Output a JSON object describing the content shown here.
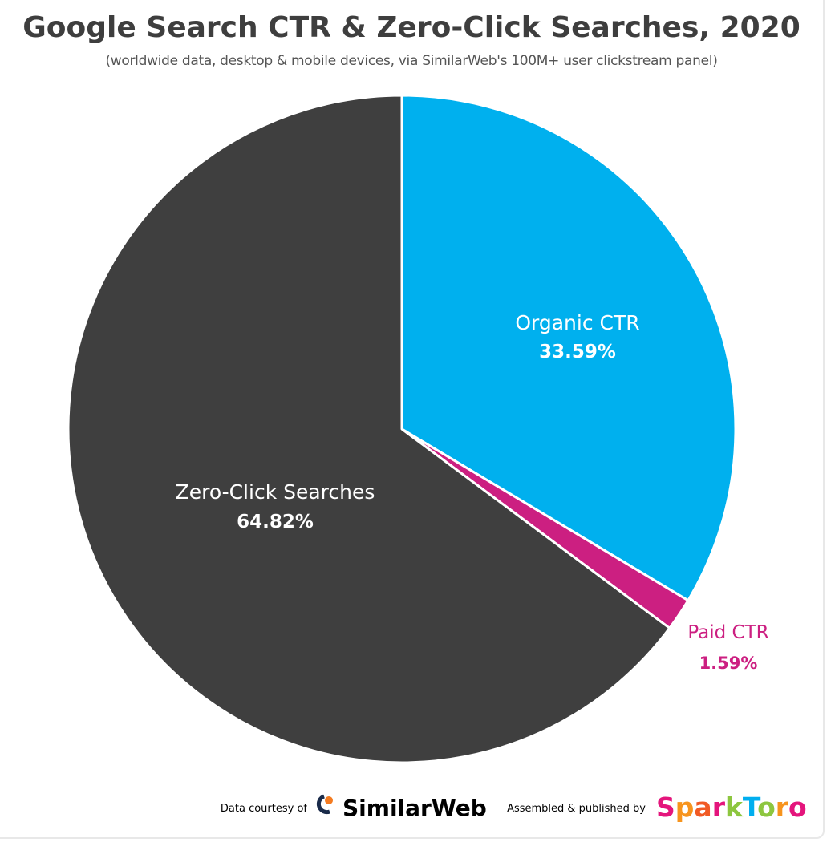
{
  "colors": {
    "zero_click": "#3f3f3f",
    "organic": "#00b0ee",
    "paid": "#cc1f81",
    "label_on_dark": "#ffffff",
    "paid_label": "#cc1f81"
  },
  "chart_data": {
    "type": "pie",
    "title": "Google Search CTR & Zero-Click Searches, 2020",
    "subtitle": "(worldwide data, desktop & mobile devices, via SimilarWeb's 100M+ user clickstream panel)",
    "start_angle": "12 o'clock",
    "direction": "clockwise",
    "slices": [
      {
        "label": "Organic CTR",
        "value": 33.59,
        "value_label": "33.59%",
        "color": "#00b0ee"
      },
      {
        "label": "Paid CTR",
        "value": 1.59,
        "value_label": "1.59%",
        "color": "#cc1f81"
      },
      {
        "label": "Zero-Click Searches",
        "value": 64.82,
        "value_label": "64.82%",
        "color": "#3f3f3f"
      }
    ]
  },
  "footer": {
    "data_courtesy": "Data courtesy of",
    "similarweb": "SimilarWeb",
    "assembled": "Assembled & published by",
    "sparktoro_letters": [
      {
        "ch": "S",
        "color": "#e4157c"
      },
      {
        "ch": "p",
        "color": "#f7941d"
      },
      {
        "ch": "a",
        "color": "#f15a24"
      },
      {
        "ch": "r",
        "color": "#e4157c"
      },
      {
        "ch": "k",
        "color": "#8dc63f"
      },
      {
        "ch": "T",
        "color": "#00aeef"
      },
      {
        "ch": "o",
        "color": "#8dc63f"
      },
      {
        "ch": "r",
        "color": "#f7941d"
      },
      {
        "ch": "o",
        "color": "#e4157c"
      }
    ]
  }
}
